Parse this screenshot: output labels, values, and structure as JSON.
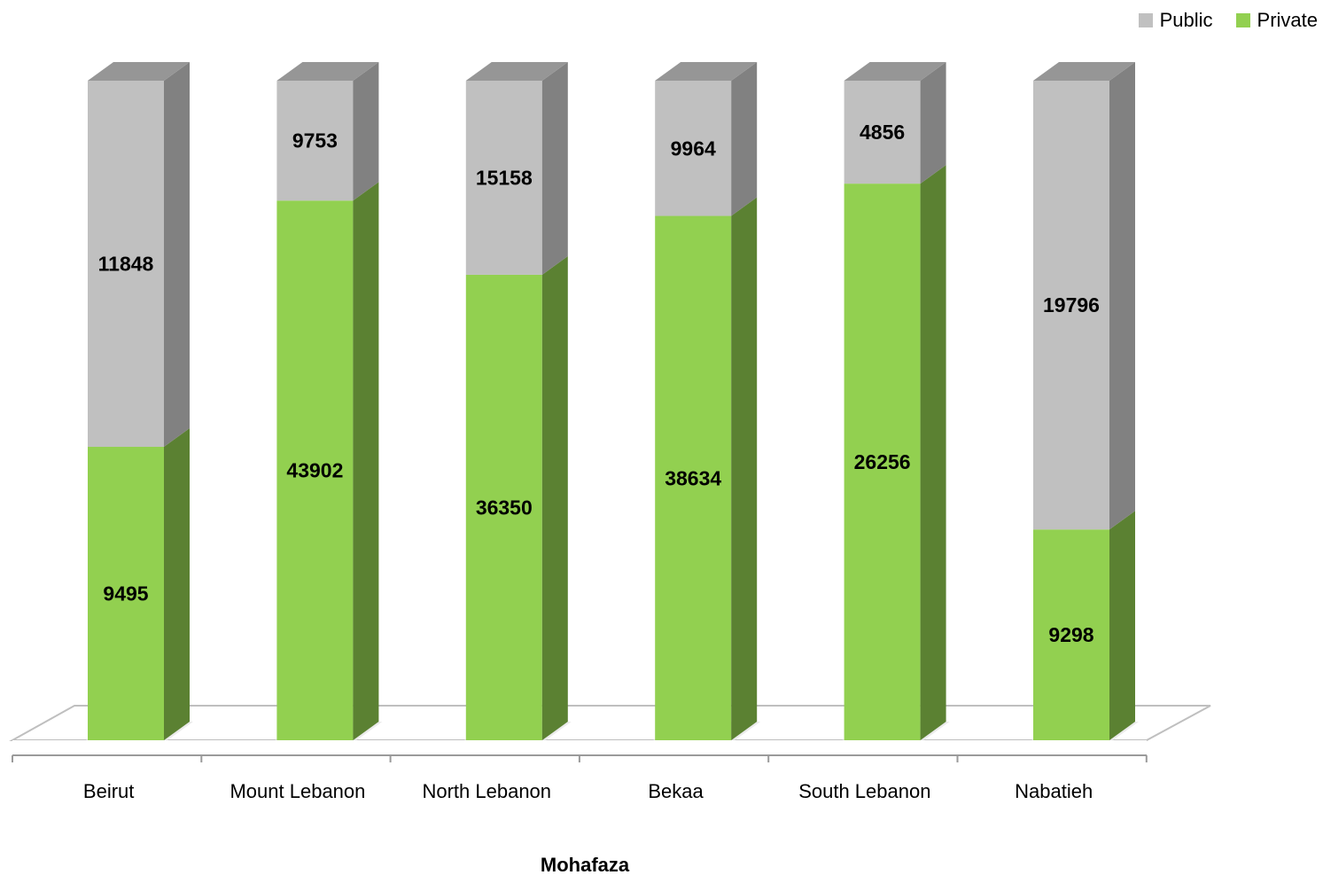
{
  "chart_data": {
    "type": "bar",
    "stacked": "percent",
    "three_d": true,
    "categories": [
      "Beirut",
      "Mount Lebanon",
      "North Lebanon",
      "Bekaa",
      "South Lebanon",
      "Nabatieh"
    ],
    "series": [
      {
        "name": "Private",
        "color": "#92d050",
        "values": [
          9495,
          43902,
          36350,
          38634,
          26256,
          9298
        ]
      },
      {
        "name": "Public",
        "color": "#c0c0c0",
        "values": [
          11848,
          9753,
          15158,
          9964,
          4856,
          19796
        ]
      }
    ],
    "xlabel": "Mohafaza",
    "ylabel": "",
    "title": "",
    "legend": "top-right",
    "grid": false
  }
}
